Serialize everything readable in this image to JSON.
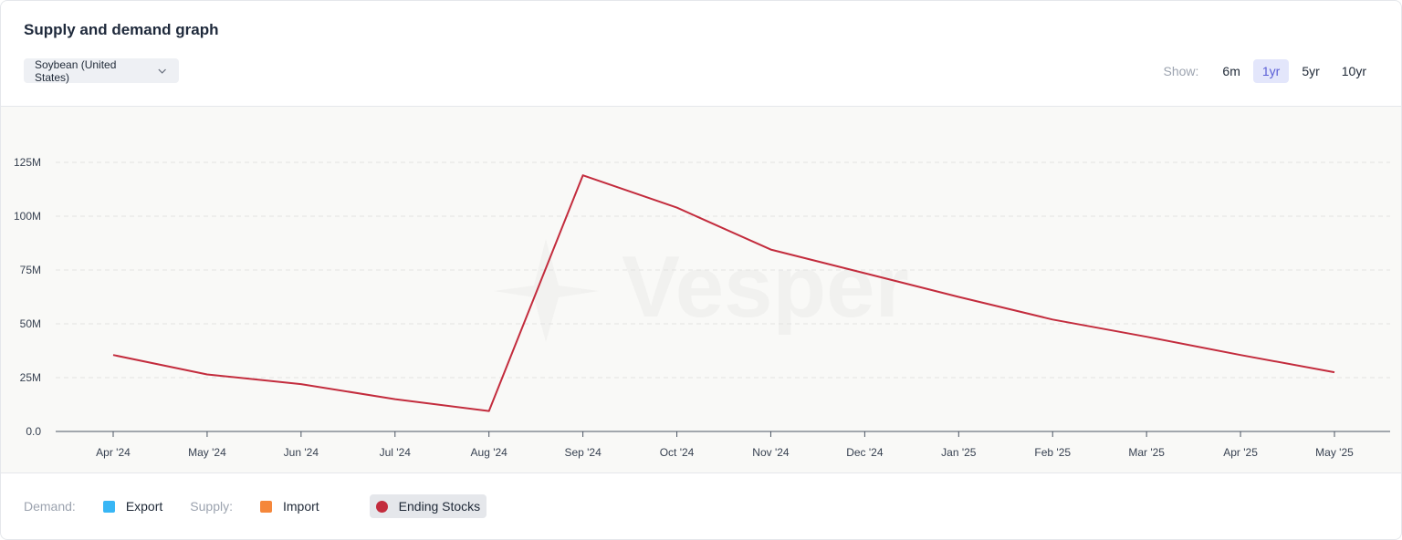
{
  "header": {
    "title": "Supply and demand graph",
    "dropdown_value": "Soybean (United States)",
    "show_label": "Show:",
    "ranges": [
      "6m",
      "1yr",
      "5yr",
      "10yr"
    ],
    "active_range": "1yr"
  },
  "watermark": "Vesper",
  "legend": {
    "demand_label": "Demand:",
    "export_label": "Export",
    "supply_label": "Supply:",
    "import_label": "Import",
    "ending_stocks_label": "Ending Stocks"
  },
  "colors": {
    "export": "#38b6f5",
    "import": "#f5873b",
    "ending_stocks": "#c32c3d",
    "active_range_bg": "#e3e6fb"
  },
  "chart_data": {
    "type": "line",
    "categories": [
      "Apr '24",
      "May '24",
      "Jun '24",
      "Jul '24",
      "Aug '24",
      "Sep '24",
      "Oct '24",
      "Nov '24",
      "Dec '24",
      "Jan '25",
      "Feb '25",
      "Mar '25",
      "Apr '25",
      "May '25"
    ],
    "series": [
      {
        "name": "Ending Stocks",
        "values": [
          35.5,
          26.5,
          22,
          15,
          9.5,
          119,
          104,
          84.5,
          73.5,
          62.5,
          52,
          44,
          35.5,
          27.5
        ]
      }
    ],
    "y_unit": "M",
    "ylim": [
      0,
      125
    ],
    "yticks": [
      0,
      25,
      50,
      75,
      100,
      125
    ],
    "ytick_labels": [
      "0.0",
      "25M",
      "50M",
      "75M",
      "100M",
      "125M"
    ],
    "grid": true,
    "legend_position": "bottom-left"
  }
}
